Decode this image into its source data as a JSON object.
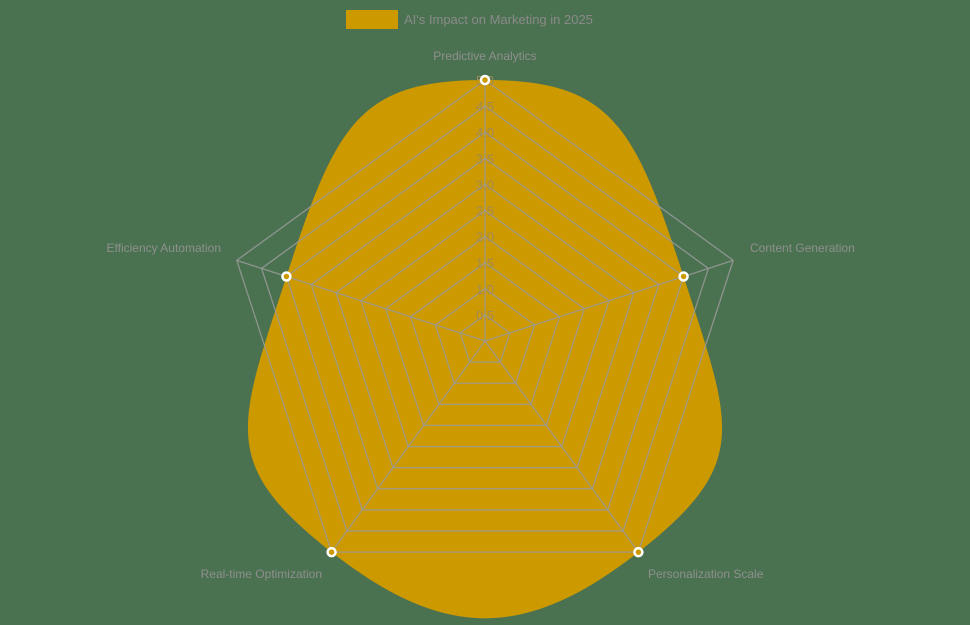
{
  "chart_data": {
    "type": "radar",
    "title": "",
    "categories": [
      "Predictive Analytics",
      "Content Generation",
      "Personalization Scale",
      "Real-time Optimization",
      "Efficiency Automation"
    ],
    "series": [
      {
        "name": "AI's Impact on Marketing in 2025",
        "values": [
          5,
          4,
          5,
          5,
          4
        ],
        "color": "#cc9900"
      }
    ],
    "rlim": [
      0,
      5
    ],
    "ticks": [
      "0.5",
      "1.0",
      "1.5",
      "2.0",
      "2.5",
      "3.0",
      "3.5",
      "4.0",
      "4.5",
      "5.0"
    ],
    "grid": true,
    "legend_position": "top"
  },
  "legend": {
    "label": "AI's Impact on Marketing in 2025",
    "color": "#cc9900"
  },
  "colors": {
    "background": "#4a7250",
    "fill": "#cc9900",
    "grid": "#9a9a9a",
    "label": "#8f8f8f",
    "point_border": "#ffffff"
  }
}
